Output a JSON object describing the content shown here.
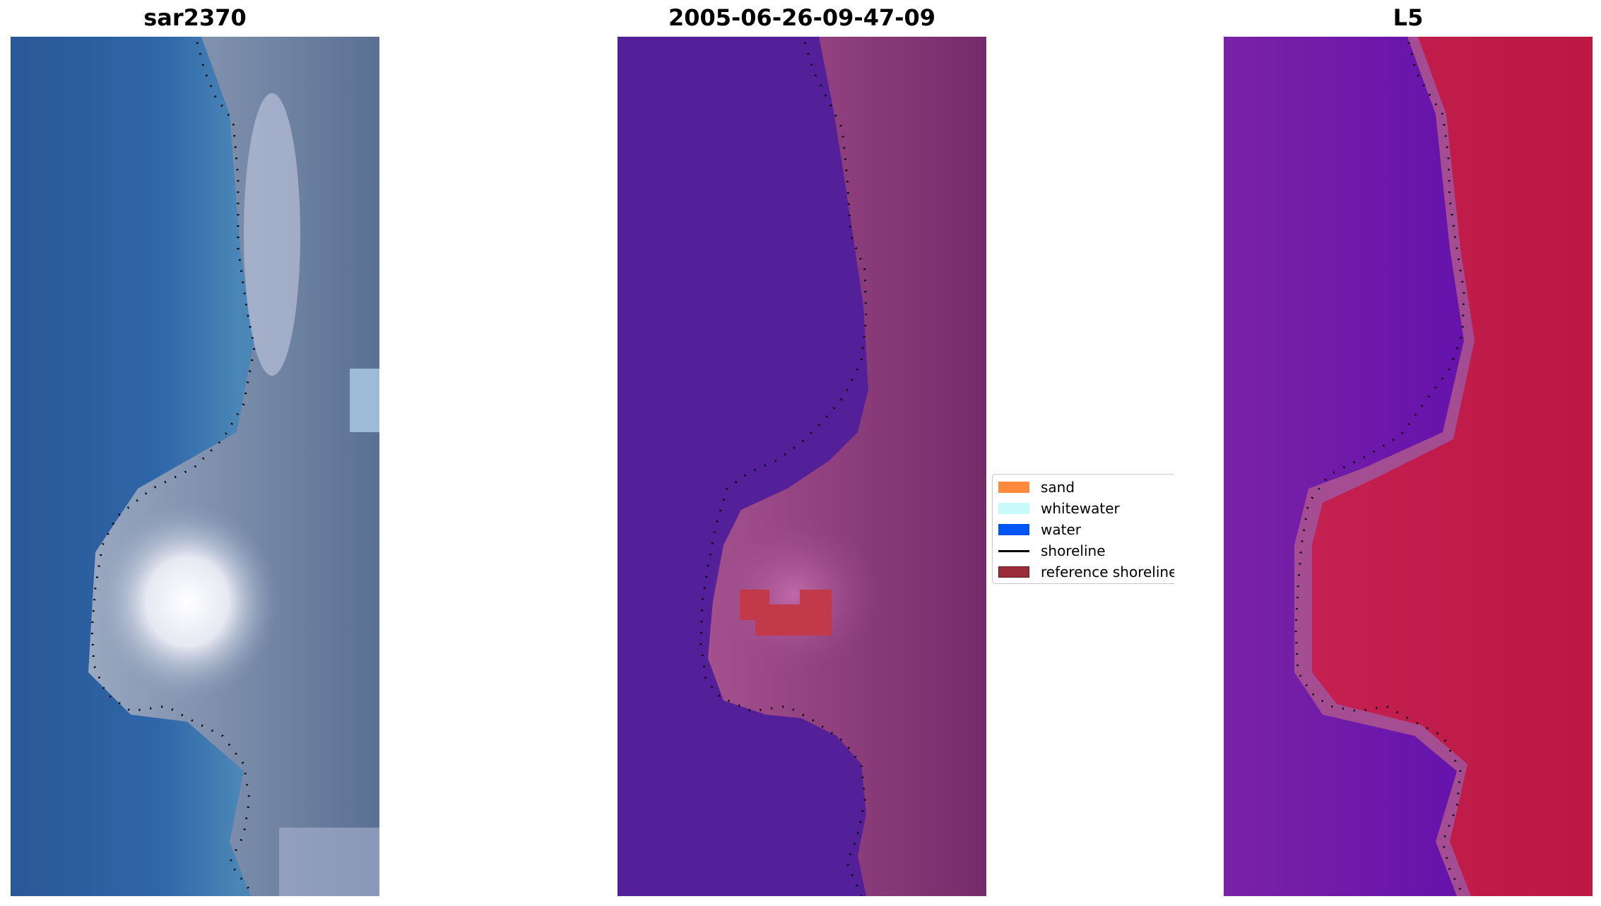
{
  "figure": {
    "panels": [
      {
        "title": "sar2370"
      },
      {
        "title": "2005-06-26-09-47-09"
      },
      {
        "title": "L5"
      }
    ]
  },
  "legend": {
    "items": [
      {
        "label": "sand",
        "color": "#ff8a3d"
      },
      {
        "label": "whitewater",
        "color": "#c8fafa"
      },
      {
        "label": "water",
        "color": "#0055f5"
      },
      {
        "label": "shoreline",
        "color": "#000000"
      },
      {
        "label": "reference shoreline buffer",
        "color": "#9b2d3a"
      }
    ]
  },
  "colors": {
    "rgb_water": "#2d5a96",
    "rgb_beach": "#7a8aa8",
    "index_water": "#54209a",
    "index_land": "#8e3c7a",
    "mndwi_water": "#6a1aa0",
    "mndwi_land": "#c21c48",
    "buffer": "#c23a4a"
  }
}
